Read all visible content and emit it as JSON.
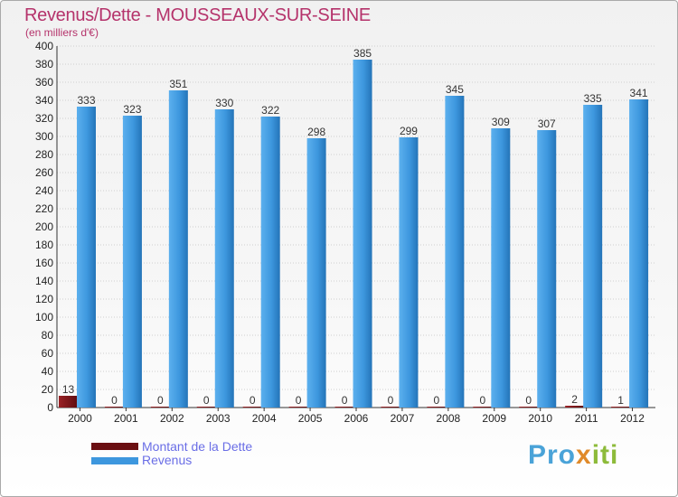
{
  "header": {
    "title": "Revenus/Dette - MOUSSEAUX-SUR-SEINE",
    "subtitle": "(en milliers d'€)"
  },
  "legend": {
    "items": [
      {
        "label": "Montant de la Dette",
        "color": "#6b0f12"
      },
      {
        "label": "Revenus",
        "color": "#3d97de"
      }
    ]
  },
  "logo": {
    "text": "Proxiti"
  },
  "chart_data": {
    "type": "bar",
    "categories": [
      "2000",
      "2001",
      "2002",
      "2003",
      "2004",
      "2005",
      "2006",
      "2007",
      "2008",
      "2009",
      "2010",
      "2011",
      "2012"
    ],
    "series": [
      {
        "name": "Montant de la Dette",
        "color": "#6b0f12",
        "values": [
          13,
          0,
          0,
          0,
          0,
          0,
          0,
          0,
          0,
          0,
          0,
          2,
          1
        ]
      },
      {
        "name": "Revenus",
        "color": "#3d97de",
        "values": [
          333,
          323,
          351,
          330,
          322,
          298,
          385,
          299,
          345,
          309,
          307,
          335,
          341
        ]
      }
    ],
    "ylim": [
      0,
      400
    ],
    "yticks": [
      0,
      20,
      40,
      60,
      80,
      100,
      120,
      140,
      160,
      180,
      200,
      220,
      240,
      260,
      280,
      300,
      320,
      340,
      360,
      380,
      400
    ],
    "grid": true,
    "legend_position": "bottom-left"
  }
}
